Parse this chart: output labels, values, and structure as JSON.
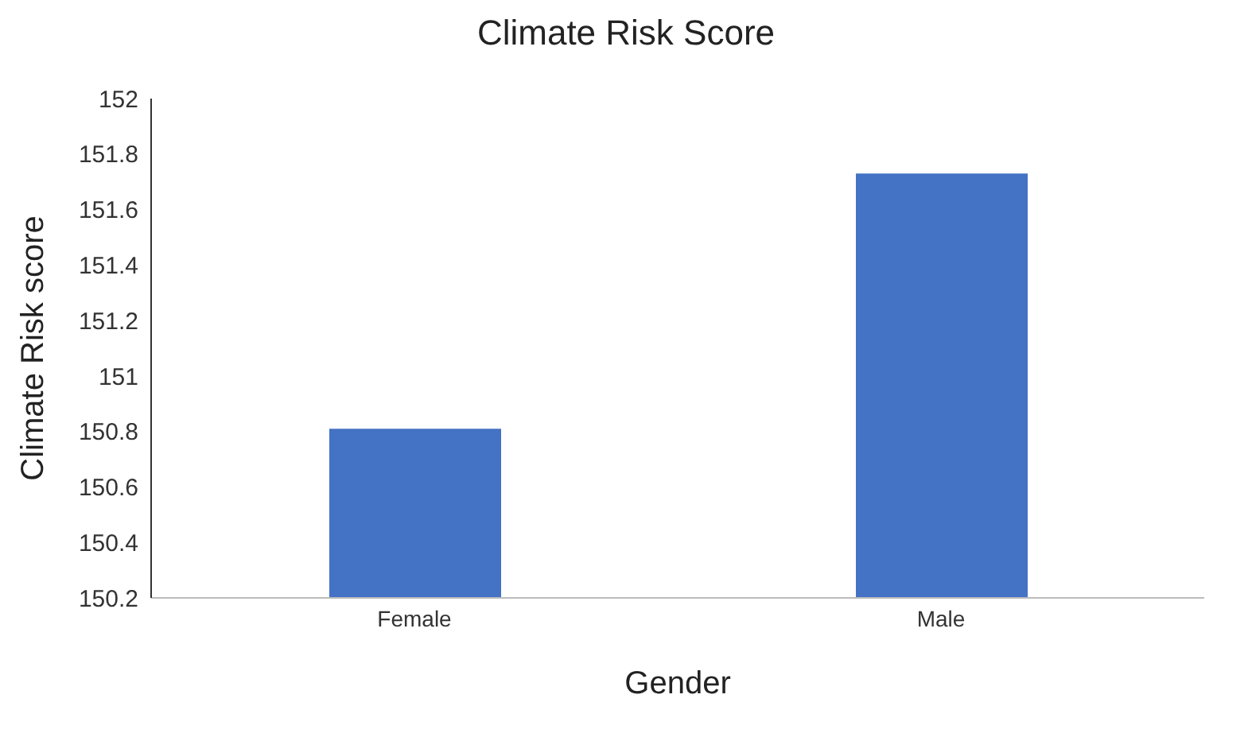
{
  "chart_data": {
    "type": "bar",
    "title": "Climate Risk Score",
    "xlabel": "Gender",
    "ylabel": "Climate Risk score",
    "categories": [
      "Female",
      "Male"
    ],
    "values": [
      150.81,
      151.73
    ],
    "color": "#4472c4",
    "ylim": [
      150.2,
      152
    ],
    "yticks": [
      150.2,
      150.4,
      150.6,
      150.8,
      151,
      151.2,
      151.4,
      151.6,
      151.8,
      152
    ],
    "grid": false,
    "legend": false
  }
}
